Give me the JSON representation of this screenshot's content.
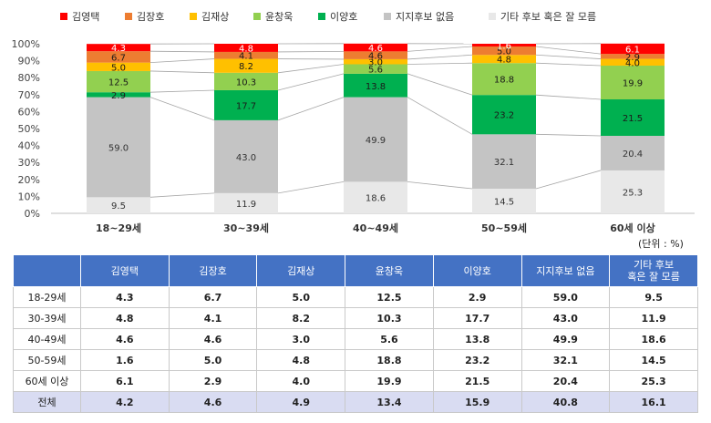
{
  "chart_data": {
    "type": "stacked-bar",
    "categories": [
      "18~29세",
      "30~39세",
      "40~49세",
      "50~59세",
      "60세 이상"
    ],
    "ylim": [
      0,
      100
    ],
    "yticks": [
      "0%",
      "10%",
      "20%",
      "30%",
      "40%",
      "50%",
      "60%",
      "70%",
      "80%",
      "90%",
      "100%"
    ],
    "legend_position": "top",
    "unit_label": "(단위 : %)",
    "series": [
      {
        "name": "기타 후보 혹은 잘 모름",
        "color": "#e8e8e8",
        "label_color": "#333333",
        "values": [
          9.5,
          11.9,
          18.6,
          14.5,
          25.3
        ]
      },
      {
        "name": "지지후보 없음",
        "color": "#c4c4c4",
        "label_color": "#333333",
        "values": [
          59.0,
          43.0,
          49.9,
          32.1,
          20.4
        ]
      },
      {
        "name": "이양호",
        "color": "#00b050",
        "label_color": "#1a1a1a",
        "values": [
          2.9,
          17.7,
          13.8,
          23.2,
          21.5
        ]
      },
      {
        "name": "윤창욱",
        "color": "#92d050",
        "label_color": "#1a1a1a",
        "values": [
          12.5,
          10.3,
          5.6,
          18.8,
          19.9
        ]
      },
      {
        "name": "김재상",
        "color": "#ffc000",
        "label_color": "#1a1a1a",
        "values": [
          5.0,
          8.2,
          3.0,
          4.8,
          4.0
        ]
      },
      {
        "name": "김장호",
        "color": "#ed7d31",
        "label_color": "#1a1a1a",
        "values": [
          6.7,
          4.1,
          4.6,
          5.0,
          2.9
        ]
      },
      {
        "name": "김영택",
        "color": "#ff0000",
        "label_color": "#ffffff",
        "values": [
          4.3,
          4.8,
          4.6,
          1.6,
          6.1
        ]
      }
    ],
    "legend_order": [
      "김영택",
      "김장호",
      "김재상",
      "윤창욱",
      "이양호",
      "지지후보 없음",
      "기타 후보 혹은 잘 모름"
    ]
  },
  "table": {
    "headers": [
      "김영택",
      "김장호",
      "김재상",
      "윤창욱",
      "이양호",
      "지지후보 없음",
      "기타 후보\n혹은 잘 모름"
    ],
    "rows": [
      {
        "label": "18-29세",
        "values": [
          "4.3",
          "6.7",
          "5.0",
          "12.5",
          "2.9",
          "59.0",
          "9.5"
        ]
      },
      {
        "label": "30-39세",
        "values": [
          "4.8",
          "4.1",
          "8.2",
          "10.3",
          "17.7",
          "43.0",
          "11.9"
        ]
      },
      {
        "label": "40-49세",
        "values": [
          "4.6",
          "4.6",
          "3.0",
          "5.6",
          "13.8",
          "49.9",
          "18.6"
        ]
      },
      {
        "label": "50-59세",
        "values": [
          "1.6",
          "5.0",
          "4.8",
          "18.8",
          "23.2",
          "32.1",
          "14.5"
        ]
      },
      {
        "label": "60세 이상",
        "values": [
          "6.1",
          "2.9",
          "4.0",
          "19.9",
          "21.5",
          "20.4",
          "25.3"
        ]
      }
    ],
    "total": {
      "label": "전체",
      "values": [
        "4.2",
        "4.6",
        "4.9",
        "13.4",
        "15.9",
        "40.8",
        "16.1"
      ]
    }
  }
}
